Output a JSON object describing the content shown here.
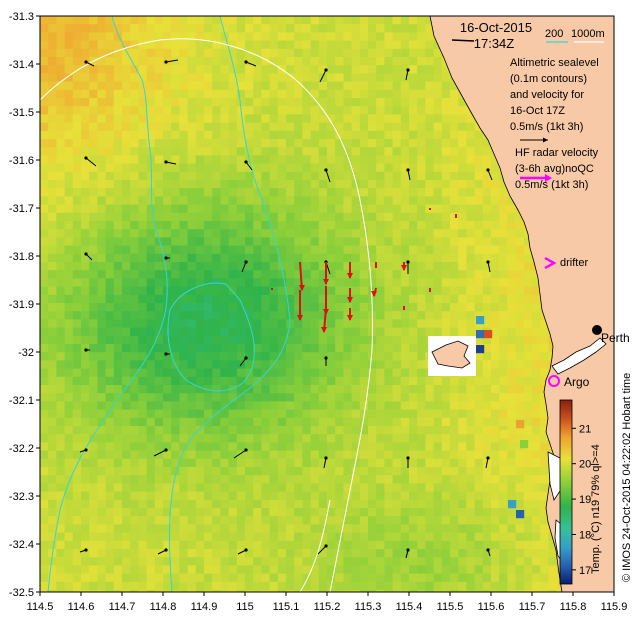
{
  "title": {
    "date": "16-Oct-2015",
    "time": "17:34Z"
  },
  "depth_legend": {
    "label_200": "200",
    "label_1000": "1000m"
  },
  "altimetry_legend": {
    "lines": [
      "Altimetric sealevel",
      "(0.1m contours)",
      "and velocity for",
      "16-Oct 17Z",
      "0.5m/s (1kt 3h)"
    ]
  },
  "hf_radar_legend": {
    "lines": [
      "HF radar velocity",
      "(3-6h avg)noQC",
      "0.5m/s (1kt 3h)"
    ]
  },
  "markers": {
    "drifter": "drifter",
    "argo": "Argo",
    "perth": "Perth"
  },
  "colorbar": {
    "ticks": [
      "17",
      "18",
      "19",
      "20",
      "21"
    ],
    "label": "Temp. (°C) n19 79% ql>=4",
    "min": 16.6,
    "max": 21.8,
    "colors": [
      "#0b1e6e",
      "#2860b0",
      "#36a0c8",
      "#36c09a",
      "#2fb34a",
      "#8bcf3a",
      "#e7e13a",
      "#f0a030",
      "#c8501e",
      "#8a2010"
    ]
  },
  "credit": {
    "text": "© IMOS 24-Oct-2015 04:22:02 Hobart time"
  },
  "axes": {
    "x_ticks": [
      "114.5",
      "114.6",
      "114.7",
      "114.8",
      "114.9",
      "115",
      "115.1",
      "115.2",
      "115.3",
      "115.4",
      "115.5",
      "115.6",
      "115.7",
      "115.8",
      "115.9"
    ],
    "y_ticks": [
      "-31.3",
      "-31.4",
      "-31.5",
      "-31.6",
      "-31.7",
      "-31.8",
      "-31.9",
      "-32",
      "-32.1",
      "-32.2",
      "-32.3",
      "-32.4",
      "-32.5"
    ],
    "lon_range": [
      114.5,
      115.9
    ],
    "lat_range": [
      -32.5,
      -31.3
    ]
  },
  "colors": {
    "land": "#f7c9a6",
    "contour_200": "#33d6d6",
    "contour_1000": "#ffffff",
    "hf_radar": "#e01010",
    "drifter": "#ff00ff",
    "argo": "#ff00ff",
    "altimetry_arrow": "#000000"
  }
}
